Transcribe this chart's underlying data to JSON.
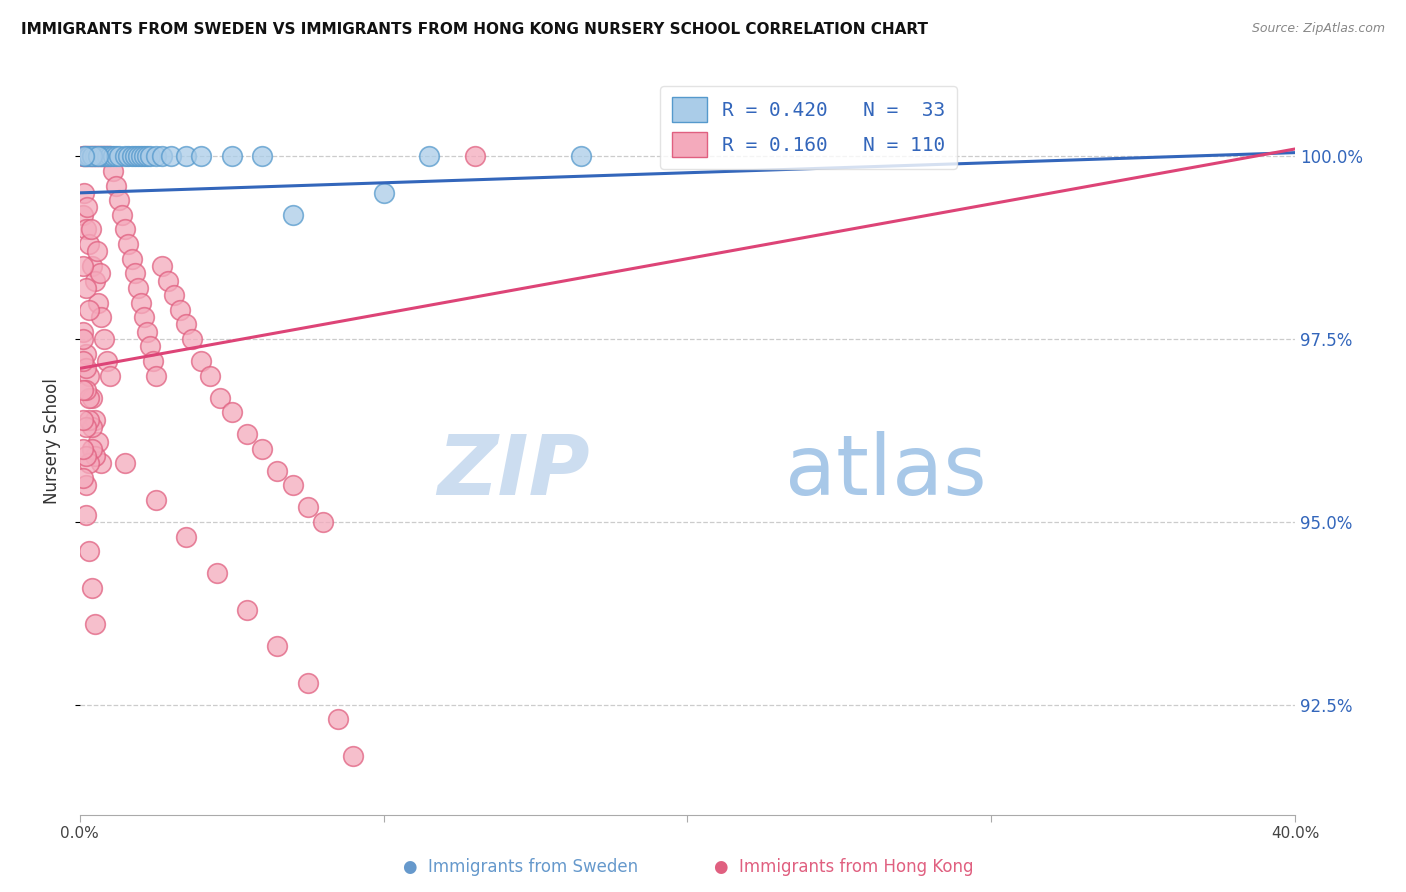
{
  "title": "IMMIGRANTS FROM SWEDEN VS IMMIGRANTS FROM HONG KONG NURSERY SCHOOL CORRELATION CHART",
  "source": "Source: ZipAtlas.com",
  "ylabel": "Nursery School",
  "xlim": [
    0.0,
    40.0
  ],
  "ylim": [
    91.0,
    101.2
  ],
  "yticks": [
    92.5,
    95.0,
    97.5,
    100.0
  ],
  "yticklabels": [
    "92.5%",
    "95.0%",
    "97.5%",
    "100.0%"
  ],
  "sweden_color": "#aacce8",
  "sweden_edge": "#5599cc",
  "hk_color": "#f4aabc",
  "hk_edge": "#e06080",
  "sweden_R": 0.42,
  "sweden_N": 33,
  "hk_R": 0.16,
  "hk_N": 110,
  "sweden_line_color": "#3366bb",
  "hk_line_color": "#dd4477",
  "sweden_line_y0": 99.5,
  "sweden_line_y1": 100.05,
  "hk_line_y0": 97.1,
  "hk_line_y1": 100.1,
  "sweden_x": [
    0.2,
    0.3,
    0.5,
    0.7,
    0.8,
    0.9,
    1.0,
    1.1,
    1.2,
    1.3,
    1.5,
    1.6,
    1.7,
    1.8,
    1.9,
    2.0,
    2.1,
    2.2,
    2.3,
    2.5,
    2.7,
    3.0,
    3.5,
    4.0,
    5.0,
    6.0,
    7.0,
    10.0,
    11.5,
    16.5,
    0.4,
    0.6,
    0.15
  ],
  "sweden_y": [
    100.0,
    100.0,
    100.0,
    100.0,
    100.0,
    100.0,
    100.0,
    100.0,
    100.0,
    100.0,
    100.0,
    100.0,
    100.0,
    100.0,
    100.0,
    100.0,
    100.0,
    100.0,
    100.0,
    100.0,
    100.0,
    100.0,
    100.0,
    100.0,
    100.0,
    100.0,
    99.2,
    99.5,
    100.0,
    100.0,
    100.0,
    100.0,
    100.0
  ],
  "hk_x": [
    0.1,
    0.15,
    0.2,
    0.25,
    0.3,
    0.35,
    0.4,
    0.45,
    0.5,
    0.55,
    0.6,
    0.65,
    0.7,
    0.75,
    0.8,
    0.85,
    0.9,
    0.95,
    1.0,
    1.1,
    1.2,
    1.3,
    1.4,
    1.5,
    1.6,
    1.7,
    1.8,
    1.9,
    2.0,
    2.1,
    2.2,
    2.3,
    2.4,
    2.5,
    2.7,
    2.9,
    3.1,
    3.3,
    3.5,
    3.7,
    4.0,
    4.3,
    4.6,
    5.0,
    5.5,
    6.0,
    6.5,
    7.0,
    7.5,
    8.0,
    0.1,
    0.2,
    0.3,
    0.4,
    0.5,
    0.6,
    0.7,
    0.8,
    0.9,
    1.0,
    0.15,
    0.25,
    0.35,
    0.55,
    0.65,
    0.1,
    0.2,
    0.3,
    0.1,
    0.2,
    0.3,
    0.4,
    0.5,
    0.6,
    0.7,
    0.1,
    0.2,
    0.3,
    0.4,
    0.5,
    0.1,
    0.2,
    0.3,
    0.4,
    0.1,
    0.2,
    0.3,
    0.1,
    0.2,
    0.1,
    0.2,
    0.1,
    0.2,
    0.3,
    0.4,
    0.5,
    1.5,
    2.5,
    3.5,
    4.5,
    5.5,
    6.5,
    7.5,
    8.5,
    9.0,
    13.0
  ],
  "hk_y": [
    100.0,
    100.0,
    100.0,
    100.0,
    100.0,
    100.0,
    100.0,
    100.0,
    100.0,
    100.0,
    100.0,
    100.0,
    100.0,
    100.0,
    100.0,
    100.0,
    100.0,
    100.0,
    100.0,
    99.8,
    99.6,
    99.4,
    99.2,
    99.0,
    98.8,
    98.6,
    98.4,
    98.2,
    98.0,
    97.8,
    97.6,
    97.4,
    97.2,
    97.0,
    98.5,
    98.3,
    98.1,
    97.9,
    97.7,
    97.5,
    97.2,
    97.0,
    96.7,
    96.5,
    96.2,
    96.0,
    95.7,
    95.5,
    95.2,
    95.0,
    99.2,
    99.0,
    98.8,
    98.5,
    98.3,
    98.0,
    97.8,
    97.5,
    97.2,
    97.0,
    99.5,
    99.3,
    99.0,
    98.7,
    98.4,
    98.5,
    98.2,
    97.9,
    97.6,
    97.3,
    97.0,
    96.7,
    96.4,
    96.1,
    95.8,
    97.5,
    97.1,
    96.7,
    96.3,
    95.9,
    97.2,
    96.8,
    96.4,
    96.0,
    96.8,
    96.3,
    95.8,
    96.4,
    95.9,
    96.0,
    95.5,
    95.6,
    95.1,
    94.6,
    94.1,
    93.6,
    95.8,
    95.3,
    94.8,
    94.3,
    93.8,
    93.3,
    92.8,
    92.3,
    91.8,
    100.0
  ]
}
